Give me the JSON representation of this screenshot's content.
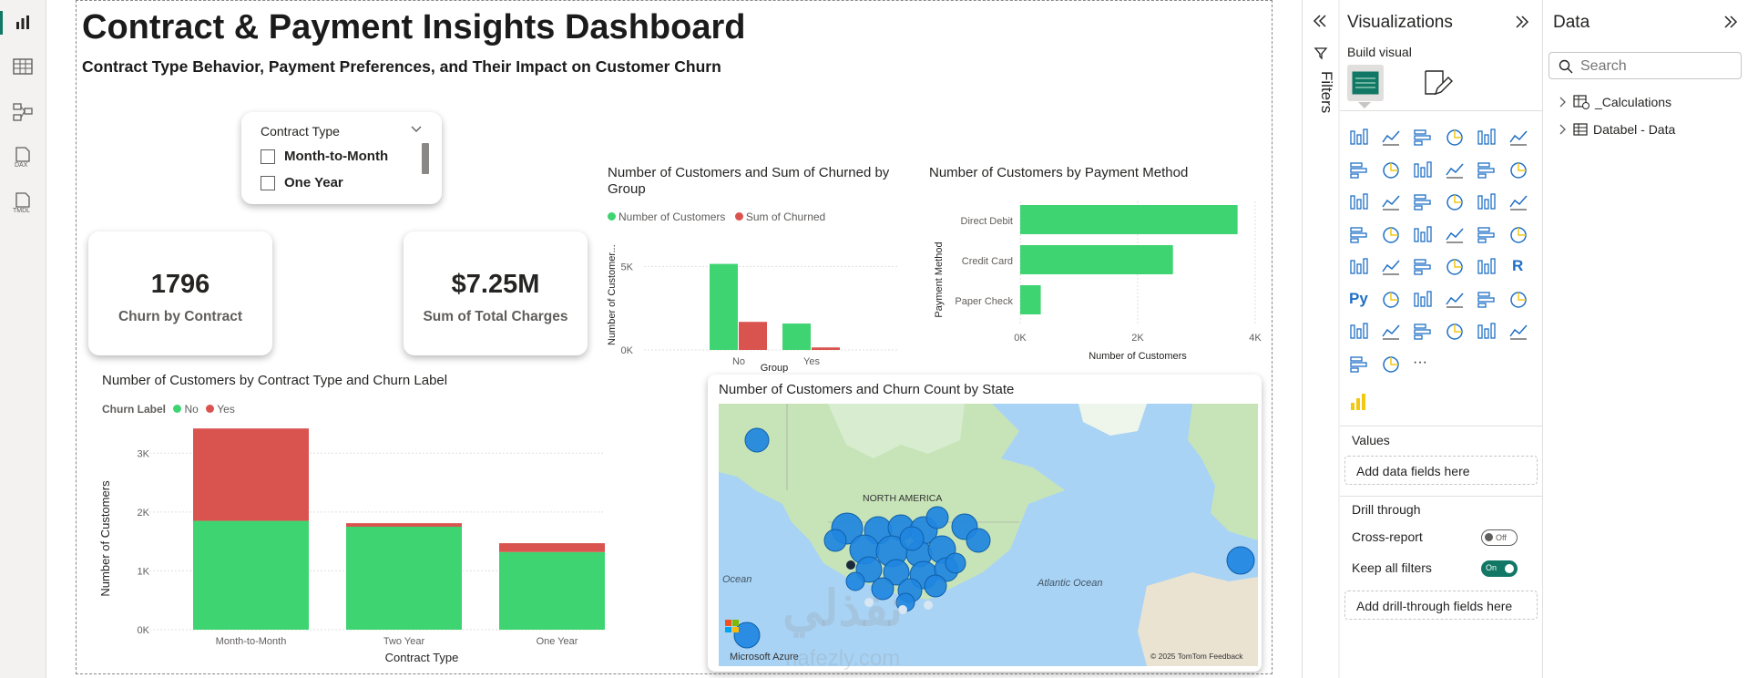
{
  "left_rail": {
    "items": [
      {
        "name": "report-view",
        "active": true
      },
      {
        "name": "table-view"
      },
      {
        "name": "model-view"
      },
      {
        "name": "dax-query-view",
        "label": "DAX"
      },
      {
        "name": "tmdl-view",
        "label": "TMDL"
      }
    ]
  },
  "dashboard": {
    "title": "Contract & Payment Insights Dashboard",
    "subtitle": "Contract Type Behavior, Payment Preferences, and Their Impact on Customer Churn"
  },
  "slicer": {
    "header": "Contract Type",
    "options": [
      "Month-to-Month",
      "One Year"
    ]
  },
  "kpis": [
    {
      "value": "1796",
      "label": "Churn by Contract"
    },
    {
      "value": "$7.25M",
      "label": "Sum of Total Charges"
    }
  ],
  "chart_data": [
    {
      "type": "bar",
      "title": "Number of Customers and Sum of Churned by Group",
      "categories": [
        "No",
        "Yes"
      ],
      "series": [
        {
          "name": "Number of Customers",
          "values": [
            5150,
            1580
          ]
        },
        {
          "name": "Sum of Churned",
          "values": [
            1680,
            150
          ]
        }
      ],
      "xlabel": "Group",
      "ylabel": "Number of Customer...",
      "ylim": [
        0,
        6000
      ],
      "yticks": [
        "0K",
        "5K"
      ],
      "yticks_values": [
        0,
        5000
      ],
      "colors": [
        "#3fd472",
        "#d9534f"
      ]
    },
    {
      "type": "bar",
      "orientation": "horizontal",
      "title": "Number of Customers by Payment Method",
      "categories": [
        "Direct Debit",
        "Credit Card",
        "Paper Check"
      ],
      "values": [
        3700,
        2600,
        350
      ],
      "xlabel": "Number of Customers",
      "ylabel": "Payment Method",
      "xlim": [
        0,
        4000
      ],
      "xticks": [
        "0K",
        "2K",
        "4K"
      ],
      "xticks_values": [
        0,
        2000,
        4000
      ],
      "color": "#3fd472"
    },
    {
      "type": "bar",
      "stacked": true,
      "title": "Number of Customers by Contract Type and Churn Label",
      "legend_title": "Churn Label",
      "categories": [
        "Month-to-Month",
        "Two Year",
        "One Year"
      ],
      "series": [
        {
          "name": "No",
          "values": [
            1850,
            1750,
            1320
          ]
        },
        {
          "name": "Yes",
          "values": [
            1570,
            60,
            150
          ]
        }
      ],
      "xlabel": "Contract Type",
      "ylabel": "Number of Customers",
      "ylim": [
        0,
        3500
      ],
      "yticks": [
        "0K",
        "1K",
        "2K",
        "3K"
      ],
      "yticks_values": [
        0,
        1000,
        2000,
        3000
      ],
      "colors": [
        "#3fd472",
        "#d9534f"
      ]
    }
  ],
  "map": {
    "title": "Number of Customers and Churn Count by State",
    "labels": {
      "continent": "NORTH AMERICA",
      "atlantic": "Atlantic Ocean",
      "ocean": "Ocean"
    },
    "attribution": "© 2025 TomTom  Feedback",
    "provider": "Microsoft Azure",
    "bubble_color": "#1f86e0"
  },
  "watermark": {
    "arabic": "نفذلي",
    "latin": "nafezly.com"
  },
  "filters_pane": {
    "label": "Filters"
  },
  "visualizations_pane": {
    "title": "Visualizations",
    "build_visual": "Build visual",
    "values_label": "Values",
    "values_placeholder": "Add data fields here",
    "drill_through": "Drill through",
    "cross_report": "Cross-report",
    "cross_report_state": "Off",
    "keep_all_filters": "Keep all filters",
    "keep_all_filters_state": "On",
    "drill_placeholder": "Add drill-through fields here",
    "more": "···",
    "py_label": "Py",
    "r_label": "R"
  },
  "data_pane": {
    "title": "Data",
    "search_placeholder": "Search",
    "tables": [
      "_Calculations",
      "Databel - Data"
    ]
  }
}
